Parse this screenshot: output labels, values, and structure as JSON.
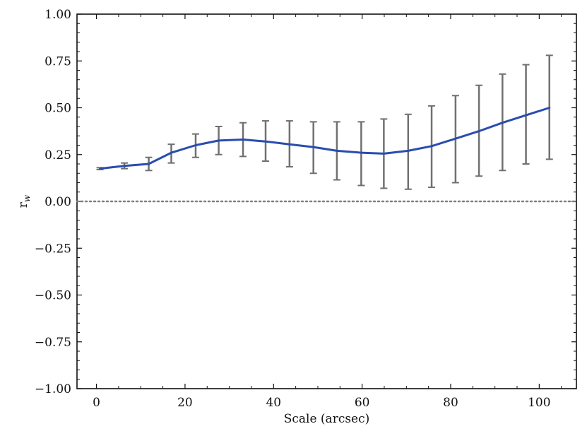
{
  "chart_data": {
    "type": "line",
    "xlabel": "Scale (arcsec)",
    "ylabel": "r_w",
    "ylabel_main": "r",
    "ylabel_sub": "w",
    "xlim": [
      -4.4,
      108.4
    ],
    "ylim": [
      -1.0,
      1.0
    ],
    "x_ticks": [
      0,
      20,
      40,
      60,
      80,
      100
    ],
    "x_tick_labels": [
      "0",
      "20",
      "40",
      "60",
      "80",
      "100"
    ],
    "y_ticks": [
      -1.0,
      -0.75,
      -0.5,
      -0.25,
      0.0,
      0.25,
      0.5,
      0.75,
      1.0
    ],
    "y_tick_labels": [
      "−1.00",
      "−0.75",
      "−0.50",
      "−0.25",
      "0.00",
      "0.25",
      "0.50",
      "0.75",
      "1.00"
    ],
    "grid": false,
    "reference_line": {
      "y": 0.0,
      "style": "dotted",
      "color": "#808080"
    },
    "series": [
      {
        "color": "#2a4cb0",
        "x": [
          0.8,
          6.3,
          11.8,
          16.9,
          22.4,
          27.6,
          33.1,
          38.2,
          43.6,
          49.0,
          54.3,
          59.8,
          64.9,
          70.4,
          75.7,
          81.1,
          86.4,
          91.7,
          97.0,
          102.3
        ],
        "y": [
          0.175,
          0.19,
          0.2,
          0.26,
          0.3,
          0.325,
          0.33,
          0.32,
          0.305,
          0.29,
          0.27,
          0.26,
          0.255,
          0.27,
          0.295,
          0.335,
          0.375,
          0.42,
          0.46,
          0.5
        ],
        "yerr_upper": [
          0.18,
          0.205,
          0.235,
          0.305,
          0.36,
          0.4,
          0.42,
          0.43,
          0.43,
          0.425,
          0.425,
          0.425,
          0.44,
          0.465,
          0.51,
          0.565,
          0.62,
          0.68,
          0.73,
          0.78
        ],
        "yerr_lower": [
          0.17,
          0.175,
          0.165,
          0.205,
          0.235,
          0.25,
          0.24,
          0.215,
          0.185,
          0.15,
          0.115,
          0.085,
          0.07,
          0.065,
          0.075,
          0.1,
          0.135,
          0.165,
          0.2,
          0.225
        ],
        "errorbar_color": "#707070"
      }
    ]
  }
}
